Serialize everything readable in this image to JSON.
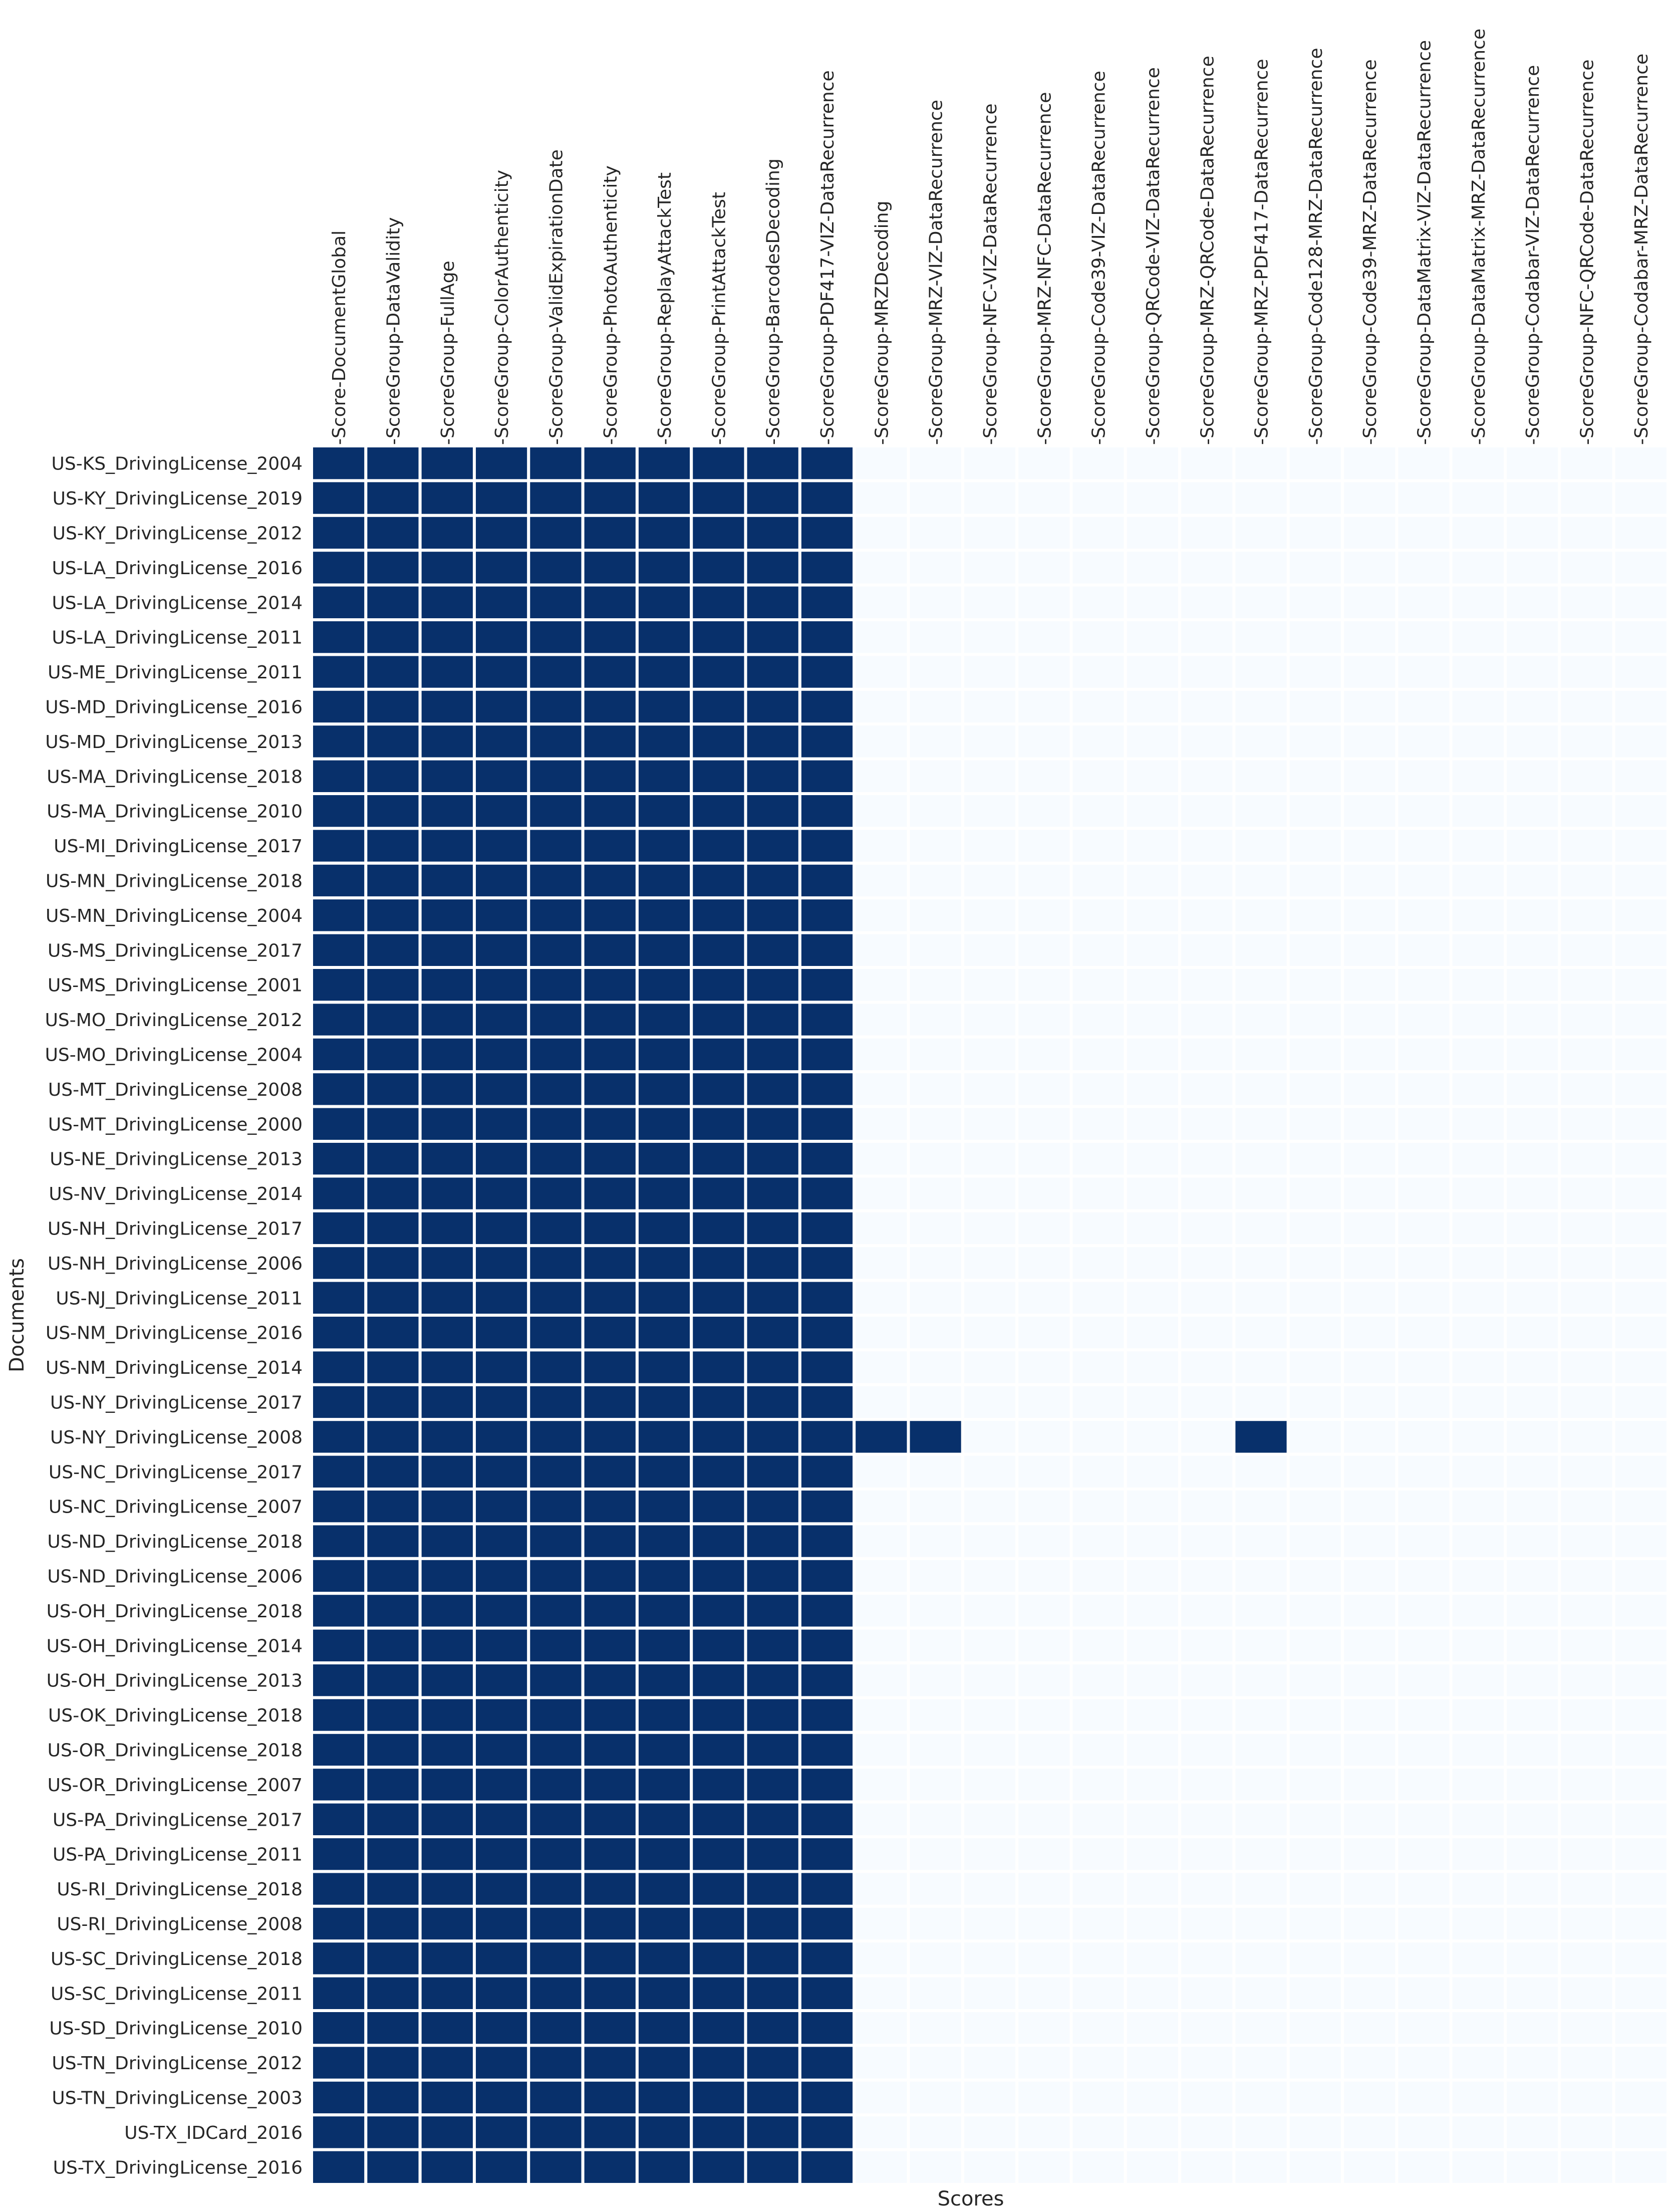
{
  "chart_data": {
    "type": "heatmap",
    "title": "",
    "xlabel": "Scores",
    "ylabel": "Documents",
    "colors": {
      "high": "#08306b",
      "low": "#f7fbff",
      "gap": "#ffffff"
    },
    "columns": [
      "Score-DocumentGlobal",
      "ScoreGroup-DataValidity",
      "ScoreGroup-FullAge",
      "ScoreGroup-ColorAuthenticity",
      "ScoreGroup-ValidExpirationDate",
      "ScoreGroup-PhotoAuthenticity",
      "ScoreGroup-ReplayAttackTest",
      "ScoreGroup-PrintAttackTest",
      "ScoreGroup-BarcodesDecoding",
      "ScoreGroup-PDF417-VIZ-DataRecurrence",
      "ScoreGroup-MRZDecoding",
      "ScoreGroup-MRZ-VIZ-DataRecurrence",
      "ScoreGroup-NFC-VIZ-DataRecurrence",
      "ScoreGroup-MRZ-NFC-DataRecurrence",
      "ScoreGroup-Code39-VIZ-DataRecurrence",
      "ScoreGroup-QRCode-VIZ-DataRecurrence",
      "ScoreGroup-MRZ-QRCode-DataRecurrence",
      "ScoreGroup-MRZ-PDF417-DataRecurrence",
      "ScoreGroup-Code128-MRZ-DataRecurrence",
      "ScoreGroup-Code39-MRZ-DataRecurrence",
      "ScoreGroup-DataMatrix-VIZ-DataRecurrence",
      "ScoreGroup-DataMatrix-MRZ-DataRecurrence",
      "ScoreGroup-Codabar-VIZ-DataRecurrence",
      "ScoreGroup-NFC-QRCode-DataRecurrence",
      "ScoreGroup-Codabar-MRZ-DataRecurrence"
    ],
    "rows": [
      "US-KS_DrivingLicense_2004",
      "US-KY_DrivingLicense_2019",
      "US-KY_DrivingLicense_2012",
      "US-LA_DrivingLicense_2016",
      "US-LA_DrivingLicense_2014",
      "US-LA_DrivingLicense_2011",
      "US-ME_DrivingLicense_2011",
      "US-MD_DrivingLicense_2016",
      "US-MD_DrivingLicense_2013",
      "US-MA_DrivingLicense_2018",
      "US-MA_DrivingLicense_2010",
      "US-MI_DrivingLicense_2017",
      "US-MN_DrivingLicense_2018",
      "US-MN_DrivingLicense_2004",
      "US-MS_DrivingLicense_2017",
      "US-MS_DrivingLicense_2001",
      "US-MO_DrivingLicense_2012",
      "US-MO_DrivingLicense_2004",
      "US-MT_DrivingLicense_2008",
      "US-MT_DrivingLicense_2000",
      "US-NE_DrivingLicense_2013",
      "US-NV_DrivingLicense_2014",
      "US-NH_DrivingLicense_2017",
      "US-NH_DrivingLicense_2006",
      "US-NJ_DrivingLicense_2011",
      "US-NM_DrivingLicense_2016",
      "US-NM_DrivingLicense_2014",
      "US-NY_DrivingLicense_2017",
      "US-NY_DrivingLicense_2008",
      "US-NC_DrivingLicense_2017",
      "US-NC_DrivingLicense_2007",
      "US-ND_DrivingLicense_2018",
      "US-ND_DrivingLicense_2006",
      "US-OH_DrivingLicense_2018",
      "US-OH_DrivingLicense_2014",
      "US-OH_DrivingLicense_2013",
      "US-OK_DrivingLicense_2018",
      "US-OR_DrivingLicense_2018",
      "US-OR_DrivingLicense_2007",
      "US-PA_DrivingLicense_2017",
      "US-PA_DrivingLicense_2011",
      "US-RI_DrivingLicense_2018",
      "US-RI_DrivingLicense_2008",
      "US-SC_DrivingLicense_2018",
      "US-SC_DrivingLicense_2011",
      "US-SD_DrivingLicense_2010",
      "US-TN_DrivingLicense_2012",
      "US-TN_DrivingLicense_2003",
      "US-TX_IDCard_2016",
      "US-TX_DrivingLicense_2016"
    ],
    "values": [
      [
        1,
        1,
        1,
        1,
        1,
        1,
        1,
        1,
        1,
        1,
        0,
        0,
        0,
        0,
        0,
        0,
        0,
        0,
        0,
        0,
        0,
        0,
        0,
        0,
        0
      ],
      [
        1,
        1,
        1,
        1,
        1,
        1,
        1,
        1,
        1,
        1,
        0,
        0,
        0,
        0,
        0,
        0,
        0,
        0,
        0,
        0,
        0,
        0,
        0,
        0,
        0
      ],
      [
        1,
        1,
        1,
        1,
        1,
        1,
        1,
        1,
        1,
        1,
        0,
        0,
        0,
        0,
        0,
        0,
        0,
        0,
        0,
        0,
        0,
        0,
        0,
        0,
        0
      ],
      [
        1,
        1,
        1,
        1,
        1,
        1,
        1,
        1,
        1,
        1,
        0,
        0,
        0,
        0,
        0,
        0,
        0,
        0,
        0,
        0,
        0,
        0,
        0,
        0,
        0
      ],
      [
        1,
        1,
        1,
        1,
        1,
        1,
        1,
        1,
        1,
        1,
        0,
        0,
        0,
        0,
        0,
        0,
        0,
        0,
        0,
        0,
        0,
        0,
        0,
        0,
        0
      ],
      [
        1,
        1,
        1,
        1,
        1,
        1,
        1,
        1,
        1,
        1,
        0,
        0,
        0,
        0,
        0,
        0,
        0,
        0,
        0,
        0,
        0,
        0,
        0,
        0,
        0
      ],
      [
        1,
        1,
        1,
        1,
        1,
        1,
        1,
        1,
        1,
        1,
        0,
        0,
        0,
        0,
        0,
        0,
        0,
        0,
        0,
        0,
        0,
        0,
        0,
        0,
        0
      ],
      [
        1,
        1,
        1,
        1,
        1,
        1,
        1,
        1,
        1,
        1,
        0,
        0,
        0,
        0,
        0,
        0,
        0,
        0,
        0,
        0,
        0,
        0,
        0,
        0,
        0
      ],
      [
        1,
        1,
        1,
        1,
        1,
        1,
        1,
        1,
        1,
        1,
        0,
        0,
        0,
        0,
        0,
        0,
        0,
        0,
        0,
        0,
        0,
        0,
        0,
        0,
        0
      ],
      [
        1,
        1,
        1,
        1,
        1,
        1,
        1,
        1,
        1,
        1,
        0,
        0,
        0,
        0,
        0,
        0,
        0,
        0,
        0,
        0,
        0,
        0,
        0,
        0,
        0
      ],
      [
        1,
        1,
        1,
        1,
        1,
        1,
        1,
        1,
        1,
        1,
        0,
        0,
        0,
        0,
        0,
        0,
        0,
        0,
        0,
        0,
        0,
        0,
        0,
        0,
        0
      ],
      [
        1,
        1,
        1,
        1,
        1,
        1,
        1,
        1,
        1,
        1,
        0,
        0,
        0,
        0,
        0,
        0,
        0,
        0,
        0,
        0,
        0,
        0,
        0,
        0,
        0
      ],
      [
        1,
        1,
        1,
        1,
        1,
        1,
        1,
        1,
        1,
        1,
        0,
        0,
        0,
        0,
        0,
        0,
        0,
        0,
        0,
        0,
        0,
        0,
        0,
        0,
        0
      ],
      [
        1,
        1,
        1,
        1,
        1,
        1,
        1,
        1,
        1,
        1,
        0,
        0,
        0,
        0,
        0,
        0,
        0,
        0,
        0,
        0,
        0,
        0,
        0,
        0,
        0
      ],
      [
        1,
        1,
        1,
        1,
        1,
        1,
        1,
        1,
        1,
        1,
        0,
        0,
        0,
        0,
        0,
        0,
        0,
        0,
        0,
        0,
        0,
        0,
        0,
        0,
        0
      ],
      [
        1,
        1,
        1,
        1,
        1,
        1,
        1,
        1,
        1,
        1,
        0,
        0,
        0,
        0,
        0,
        0,
        0,
        0,
        0,
        0,
        0,
        0,
        0,
        0,
        0
      ],
      [
        1,
        1,
        1,
        1,
        1,
        1,
        1,
        1,
        1,
        1,
        0,
        0,
        0,
        0,
        0,
        0,
        0,
        0,
        0,
        0,
        0,
        0,
        0,
        0,
        0
      ],
      [
        1,
        1,
        1,
        1,
        1,
        1,
        1,
        1,
        1,
        1,
        0,
        0,
        0,
        0,
        0,
        0,
        0,
        0,
        0,
        0,
        0,
        0,
        0,
        0,
        0
      ],
      [
        1,
        1,
        1,
        1,
        1,
        1,
        1,
        1,
        1,
        1,
        0,
        0,
        0,
        0,
        0,
        0,
        0,
        0,
        0,
        0,
        0,
        0,
        0,
        0,
        0
      ],
      [
        1,
        1,
        1,
        1,
        1,
        1,
        1,
        1,
        1,
        1,
        0,
        0,
        0,
        0,
        0,
        0,
        0,
        0,
        0,
        0,
        0,
        0,
        0,
        0,
        0
      ],
      [
        1,
        1,
        1,
        1,
        1,
        1,
        1,
        1,
        1,
        1,
        0,
        0,
        0,
        0,
        0,
        0,
        0,
        0,
        0,
        0,
        0,
        0,
        0,
        0,
        0
      ],
      [
        1,
        1,
        1,
        1,
        1,
        1,
        1,
        1,
        1,
        1,
        0,
        0,
        0,
        0,
        0,
        0,
        0,
        0,
        0,
        0,
        0,
        0,
        0,
        0,
        0
      ],
      [
        1,
        1,
        1,
        1,
        1,
        1,
        1,
        1,
        1,
        1,
        0,
        0,
        0,
        0,
        0,
        0,
        0,
        0,
        0,
        0,
        0,
        0,
        0,
        0,
        0
      ],
      [
        1,
        1,
        1,
        1,
        1,
        1,
        1,
        1,
        1,
        1,
        0,
        0,
        0,
        0,
        0,
        0,
        0,
        0,
        0,
        0,
        0,
        0,
        0,
        0,
        0
      ],
      [
        1,
        1,
        1,
        1,
        1,
        1,
        1,
        1,
        1,
        1,
        0,
        0,
        0,
        0,
        0,
        0,
        0,
        0,
        0,
        0,
        0,
        0,
        0,
        0,
        0
      ],
      [
        1,
        1,
        1,
        1,
        1,
        1,
        1,
        1,
        1,
        1,
        0,
        0,
        0,
        0,
        0,
        0,
        0,
        0,
        0,
        0,
        0,
        0,
        0,
        0,
        0
      ],
      [
        1,
        1,
        1,
        1,
        1,
        1,
        1,
        1,
        1,
        1,
        0,
        0,
        0,
        0,
        0,
        0,
        0,
        0,
        0,
        0,
        0,
        0,
        0,
        0,
        0
      ],
      [
        1,
        1,
        1,
        1,
        1,
        1,
        1,
        1,
        1,
        1,
        0,
        0,
        0,
        0,
        0,
        0,
        0,
        0,
        0,
        0,
        0,
        0,
        0,
        0,
        0
      ],
      [
        1,
        1,
        1,
        1,
        1,
        1,
        1,
        1,
        1,
        1,
        1,
        1,
        0,
        0,
        0,
        0,
        0,
        1,
        0,
        0,
        0,
        0,
        0,
        0,
        0
      ],
      [
        1,
        1,
        1,
        1,
        1,
        1,
        1,
        1,
        1,
        1,
        0,
        0,
        0,
        0,
        0,
        0,
        0,
        0,
        0,
        0,
        0,
        0,
        0,
        0,
        0
      ],
      [
        1,
        1,
        1,
        1,
        1,
        1,
        1,
        1,
        1,
        1,
        0,
        0,
        0,
        0,
        0,
        0,
        0,
        0,
        0,
        0,
        0,
        0,
        0,
        0,
        0
      ],
      [
        1,
        1,
        1,
        1,
        1,
        1,
        1,
        1,
        1,
        1,
        0,
        0,
        0,
        0,
        0,
        0,
        0,
        0,
        0,
        0,
        0,
        0,
        0,
        0,
        0
      ],
      [
        1,
        1,
        1,
        1,
        1,
        1,
        1,
        1,
        1,
        1,
        0,
        0,
        0,
        0,
        0,
        0,
        0,
        0,
        0,
        0,
        0,
        0,
        0,
        0,
        0
      ],
      [
        1,
        1,
        1,
        1,
        1,
        1,
        1,
        1,
        1,
        1,
        0,
        0,
        0,
        0,
        0,
        0,
        0,
        0,
        0,
        0,
        0,
        0,
        0,
        0,
        0
      ],
      [
        1,
        1,
        1,
        1,
        1,
        1,
        1,
        1,
        1,
        1,
        0,
        0,
        0,
        0,
        0,
        0,
        0,
        0,
        0,
        0,
        0,
        0,
        0,
        0,
        0
      ],
      [
        1,
        1,
        1,
        1,
        1,
        1,
        1,
        1,
        1,
        1,
        0,
        0,
        0,
        0,
        0,
        0,
        0,
        0,
        0,
        0,
        0,
        0,
        0,
        0,
        0
      ],
      [
        1,
        1,
        1,
        1,
        1,
        1,
        1,
        1,
        1,
        1,
        0,
        0,
        0,
        0,
        0,
        0,
        0,
        0,
        0,
        0,
        0,
        0,
        0,
        0,
        0
      ],
      [
        1,
        1,
        1,
        1,
        1,
        1,
        1,
        1,
        1,
        1,
        0,
        0,
        0,
        0,
        0,
        0,
        0,
        0,
        0,
        0,
        0,
        0,
        0,
        0,
        0
      ],
      [
        1,
        1,
        1,
        1,
        1,
        1,
        1,
        1,
        1,
        1,
        0,
        0,
        0,
        0,
        0,
        0,
        0,
        0,
        0,
        0,
        0,
        0,
        0,
        0,
        0
      ],
      [
        1,
        1,
        1,
        1,
        1,
        1,
        1,
        1,
        1,
        1,
        0,
        0,
        0,
        0,
        0,
        0,
        0,
        0,
        0,
        0,
        0,
        0,
        0,
        0,
        0
      ],
      [
        1,
        1,
        1,
        1,
        1,
        1,
        1,
        1,
        1,
        1,
        0,
        0,
        0,
        0,
        0,
        0,
        0,
        0,
        0,
        0,
        0,
        0,
        0,
        0,
        0
      ],
      [
        1,
        1,
        1,
        1,
        1,
        1,
        1,
        1,
        1,
        1,
        0,
        0,
        0,
        0,
        0,
        0,
        0,
        0,
        0,
        0,
        0,
        0,
        0,
        0,
        0
      ],
      [
        1,
        1,
        1,
        1,
        1,
        1,
        1,
        1,
        1,
        1,
        0,
        0,
        0,
        0,
        0,
        0,
        0,
        0,
        0,
        0,
        0,
        0,
        0,
        0,
        0
      ],
      [
        1,
        1,
        1,
        1,
        1,
        1,
        1,
        1,
        1,
        1,
        0,
        0,
        0,
        0,
        0,
        0,
        0,
        0,
        0,
        0,
        0,
        0,
        0,
        0,
        0
      ],
      [
        1,
        1,
        1,
        1,
        1,
        1,
        1,
        1,
        1,
        1,
        0,
        0,
        0,
        0,
        0,
        0,
        0,
        0,
        0,
        0,
        0,
        0,
        0,
        0,
        0
      ],
      [
        1,
        1,
        1,
        1,
        1,
        1,
        1,
        1,
        1,
        1,
        0,
        0,
        0,
        0,
        0,
        0,
        0,
        0,
        0,
        0,
        0,
        0,
        0,
        0,
        0
      ],
      [
        1,
        1,
        1,
        1,
        1,
        1,
        1,
        1,
        1,
        1,
        0,
        0,
        0,
        0,
        0,
        0,
        0,
        0,
        0,
        0,
        0,
        0,
        0,
        0,
        0
      ],
      [
        1,
        1,
        1,
        1,
        1,
        1,
        1,
        1,
        1,
        1,
        0,
        0,
        0,
        0,
        0,
        0,
        0,
        0,
        0,
        0,
        0,
        0,
        0,
        0,
        0
      ],
      [
        1,
        1,
        1,
        1,
        1,
        1,
        1,
        1,
        1,
        1,
        0,
        0,
        0,
        0,
        0,
        0,
        0,
        0,
        0,
        0,
        0,
        0,
        0,
        0,
        0
      ],
      [
        1,
        1,
        1,
        1,
        1,
        1,
        1,
        1,
        1,
        1,
        0,
        0,
        0,
        0,
        0,
        0,
        0,
        0,
        0,
        0,
        0,
        0,
        0,
        0,
        0
      ]
    ]
  }
}
